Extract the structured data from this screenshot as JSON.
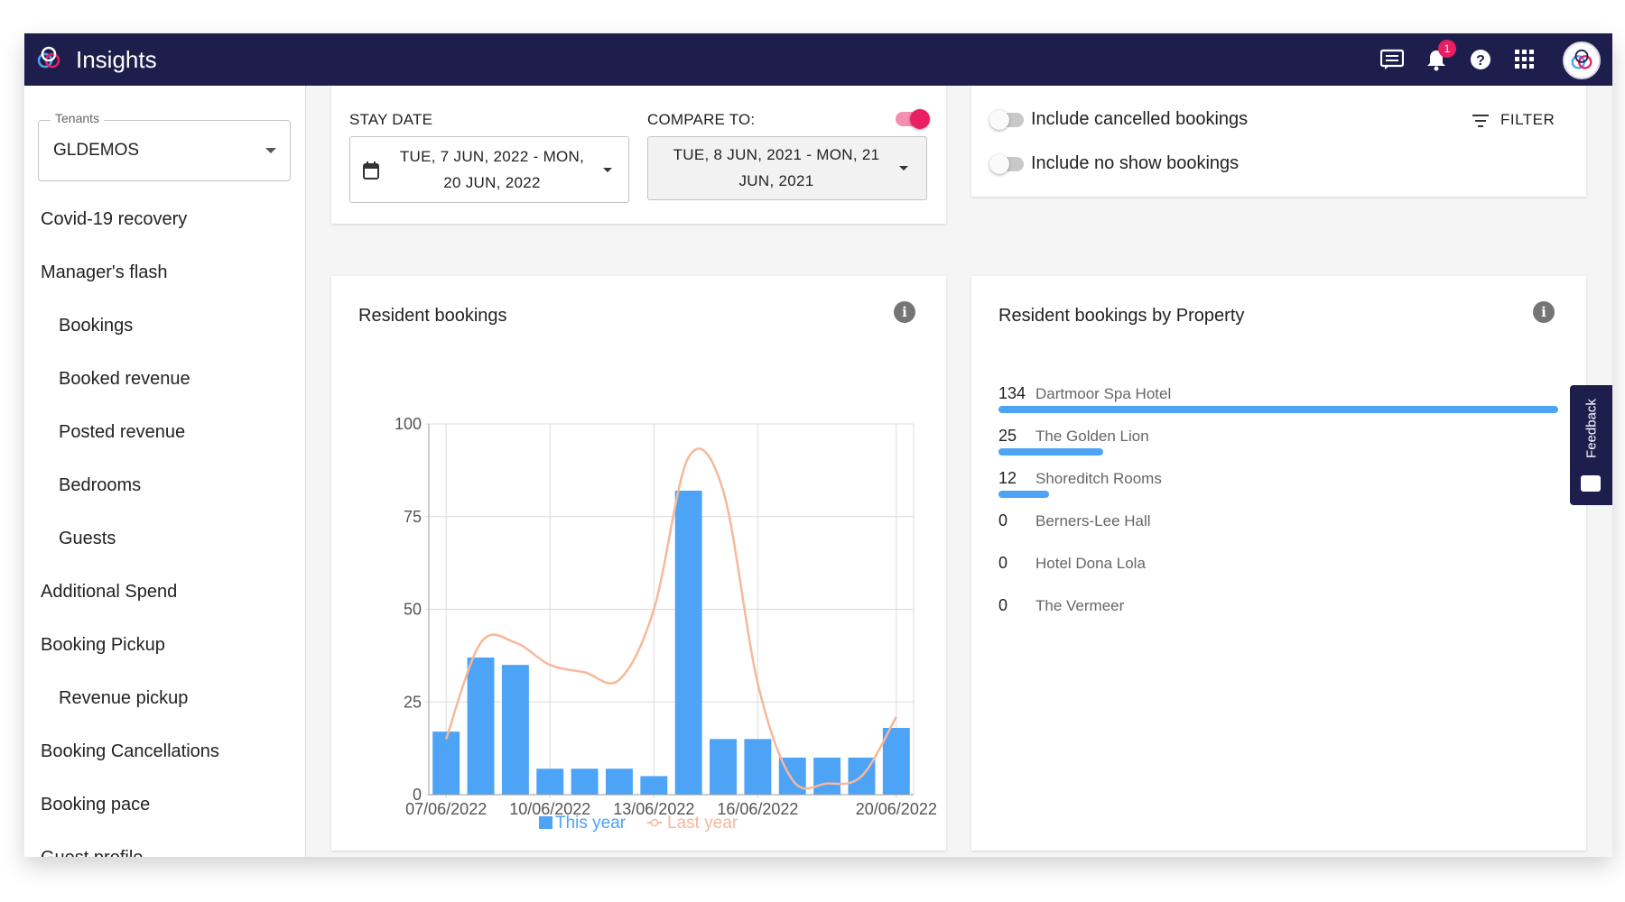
{
  "app": {
    "title": "Insights",
    "notification_count": "1"
  },
  "topbar_icons": [
    "chat-icon",
    "bell-icon",
    "help-icon",
    "apps-grid-icon",
    "account-avatar"
  ],
  "sidebar": {
    "tenant_label": "Tenants",
    "tenant_value": "GLDEMOS",
    "items": [
      {
        "label": "Covid-19 recovery",
        "indent": false
      },
      {
        "label": "Manager's flash",
        "indent": false
      },
      {
        "label": "Bookings",
        "indent": true
      },
      {
        "label": "Booked revenue",
        "indent": true
      },
      {
        "label": "Posted revenue",
        "indent": true
      },
      {
        "label": "Bedrooms",
        "indent": true
      },
      {
        "label": "Guests",
        "indent": true
      },
      {
        "label": "Additional Spend",
        "indent": false
      },
      {
        "label": "Booking Pickup",
        "indent": false
      },
      {
        "label": "Revenue pickup",
        "indent": true
      },
      {
        "label": "Booking Cancellations",
        "indent": false
      },
      {
        "label": "Booking pace",
        "indent": false
      },
      {
        "label": "Guest profile",
        "indent": false
      }
    ]
  },
  "filters": {
    "stay_date_label": "STAY DATE",
    "stay_date_line1": "TUE, 7 JUN, 2022 - MON,",
    "stay_date_line2": "20 JUN, 2022",
    "compare_label": "COMPARE TO:",
    "compare_enabled": true,
    "compare_line1": "TUE, 8 JUN, 2021 - MON, 21",
    "compare_line2": "JUN, 2021",
    "include_cancelled": "Include cancelled bookings",
    "include_cancelled_on": false,
    "include_no_show": "Include no show bookings",
    "include_no_show_on": false,
    "filter_button": "FILTER"
  },
  "colors": {
    "topbar": "#1e1e4d",
    "this_year": "#4da3f5",
    "last_year": "#f6b899",
    "toggle_on": "#e91e63"
  },
  "resident_bookings": {
    "title": "Resident bookings"
  },
  "chart_data": {
    "type": "bar",
    "title": "Resident bookings",
    "x": [
      "07/06/2022",
      "08/06/2022",
      "09/06/2022",
      "10/06/2022",
      "11/06/2022",
      "12/06/2022",
      "13/06/2022",
      "14/06/2022",
      "15/06/2022",
      "16/06/2022",
      "17/06/2022",
      "18/06/2022",
      "19/06/2022",
      "20/06/2022"
    ],
    "x_tick_labels": [
      "07/06/2022",
      "10/06/2022",
      "13/06/2022",
      "16/06/2022",
      "20/06/2022"
    ],
    "series": [
      {
        "name": "This year",
        "type": "bar",
        "color": "#4da3f5",
        "values": [
          17,
          37,
          35,
          7,
          7,
          7,
          5,
          82,
          15,
          15,
          10,
          10,
          10,
          18
        ]
      },
      {
        "name": "Last year",
        "type": "line",
        "smooth": true,
        "color": "#f6b899",
        "values": [
          15,
          41,
          41,
          35,
          33,
          31,
          50,
          91,
          82,
          30,
          4,
          3,
          5,
          21
        ]
      }
    ],
    "y_ticks": [
      0,
      25,
      50,
      75,
      100
    ],
    "ylim": [
      0,
      100
    ],
    "grid": true,
    "legend_position": "bottom"
  },
  "by_property": {
    "title": "Resident bookings by Property",
    "max": 134,
    "rows": [
      {
        "count": "134",
        "value": 134,
        "name": "Dartmoor Spa Hotel"
      },
      {
        "count": "25",
        "value": 25,
        "name": "The Golden Lion"
      },
      {
        "count": "12",
        "value": 12,
        "name": "Shoreditch Rooms"
      },
      {
        "count": "0",
        "value": 0,
        "name": "Berners-Lee Hall"
      },
      {
        "count": "0",
        "value": 0,
        "name": "Hotel Dona Lola"
      },
      {
        "count": "0",
        "value": 0,
        "name": "The Vermeer"
      }
    ]
  },
  "feedback": {
    "label": "Feedback"
  }
}
